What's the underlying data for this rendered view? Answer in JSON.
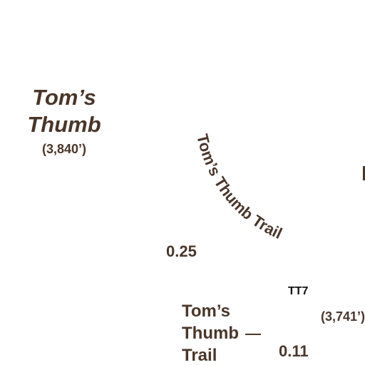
{
  "colors": {
    "label": "#4a3629",
    "junction": "#111111",
    "background": "#ffffff"
  },
  "peak": {
    "name_line1": "Tom’s",
    "name_line2": "Thumb",
    "elevation": "(3,840’)"
  },
  "trail_label_curved": "Tom’s Thumb Trail",
  "mileages": [
    "0.25",
    "0.11"
  ],
  "junction_code": "TT7",
  "second_elevation": "(3,741’)",
  "trail_label_block": {
    "line1": "Tom’s",
    "line2": "Thumb",
    "line3": "Trail"
  }
}
